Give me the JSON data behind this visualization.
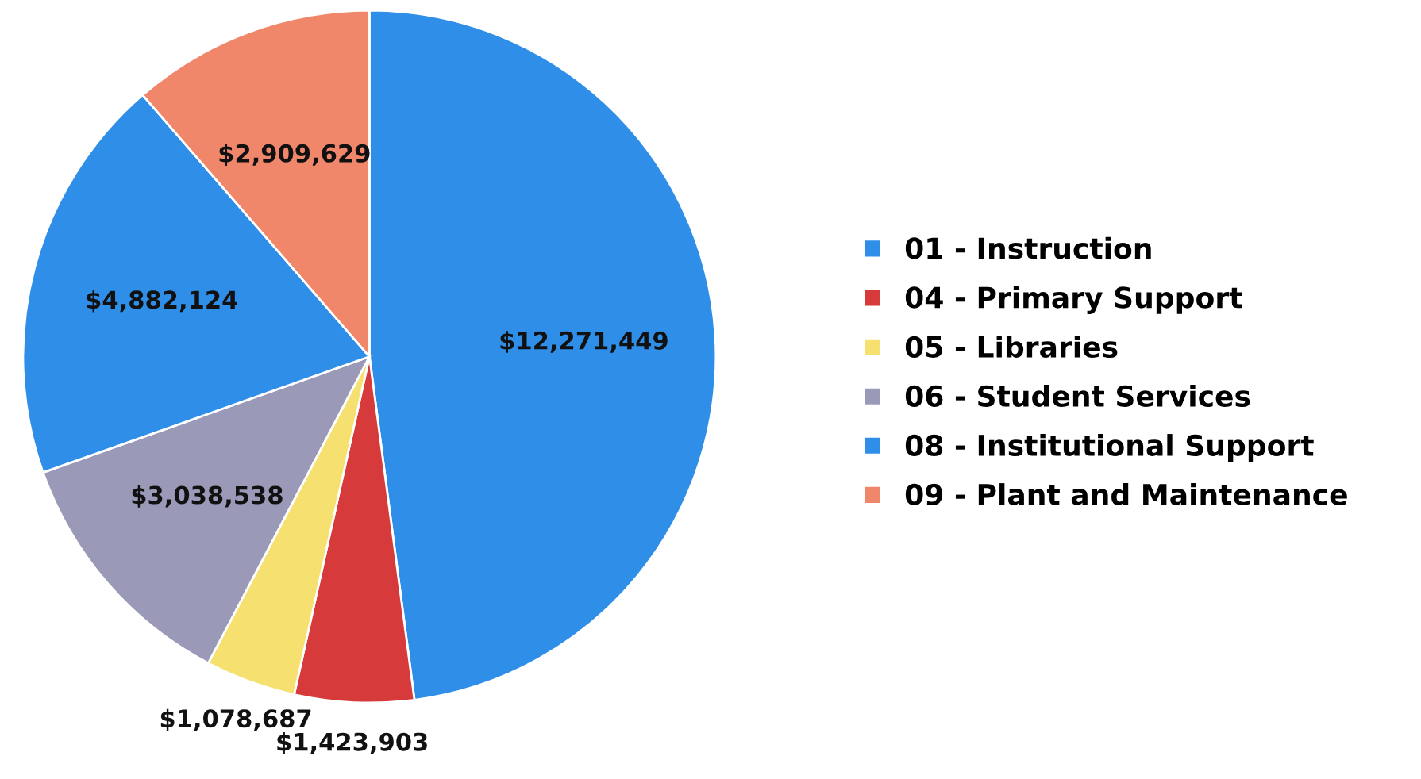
{
  "chart_data": {
    "type": "pie",
    "categories": [
      "01 - Instruction",
      "04 - Primary Support",
      "05 - Libraries",
      "06 - Student Services",
      "08 - Institutional Support",
      "09 - Plant and Maintenance"
    ],
    "values": [
      12271449,
      1423903,
      1078687,
      3038538,
      4882124,
      2909629
    ],
    "value_labels": [
      "$12,271,449",
      "$1,423,903",
      "$1,078,687",
      "$3,038,538",
      "$4,882,124",
      "$2,909,629"
    ],
    "colors": [
      "#2f8fe8",
      "#d63a3a",
      "#f5e070",
      "#9a9ab8",
      "#2f8fe8",
      "#f0876a"
    ],
    "legend": "right"
  }
}
